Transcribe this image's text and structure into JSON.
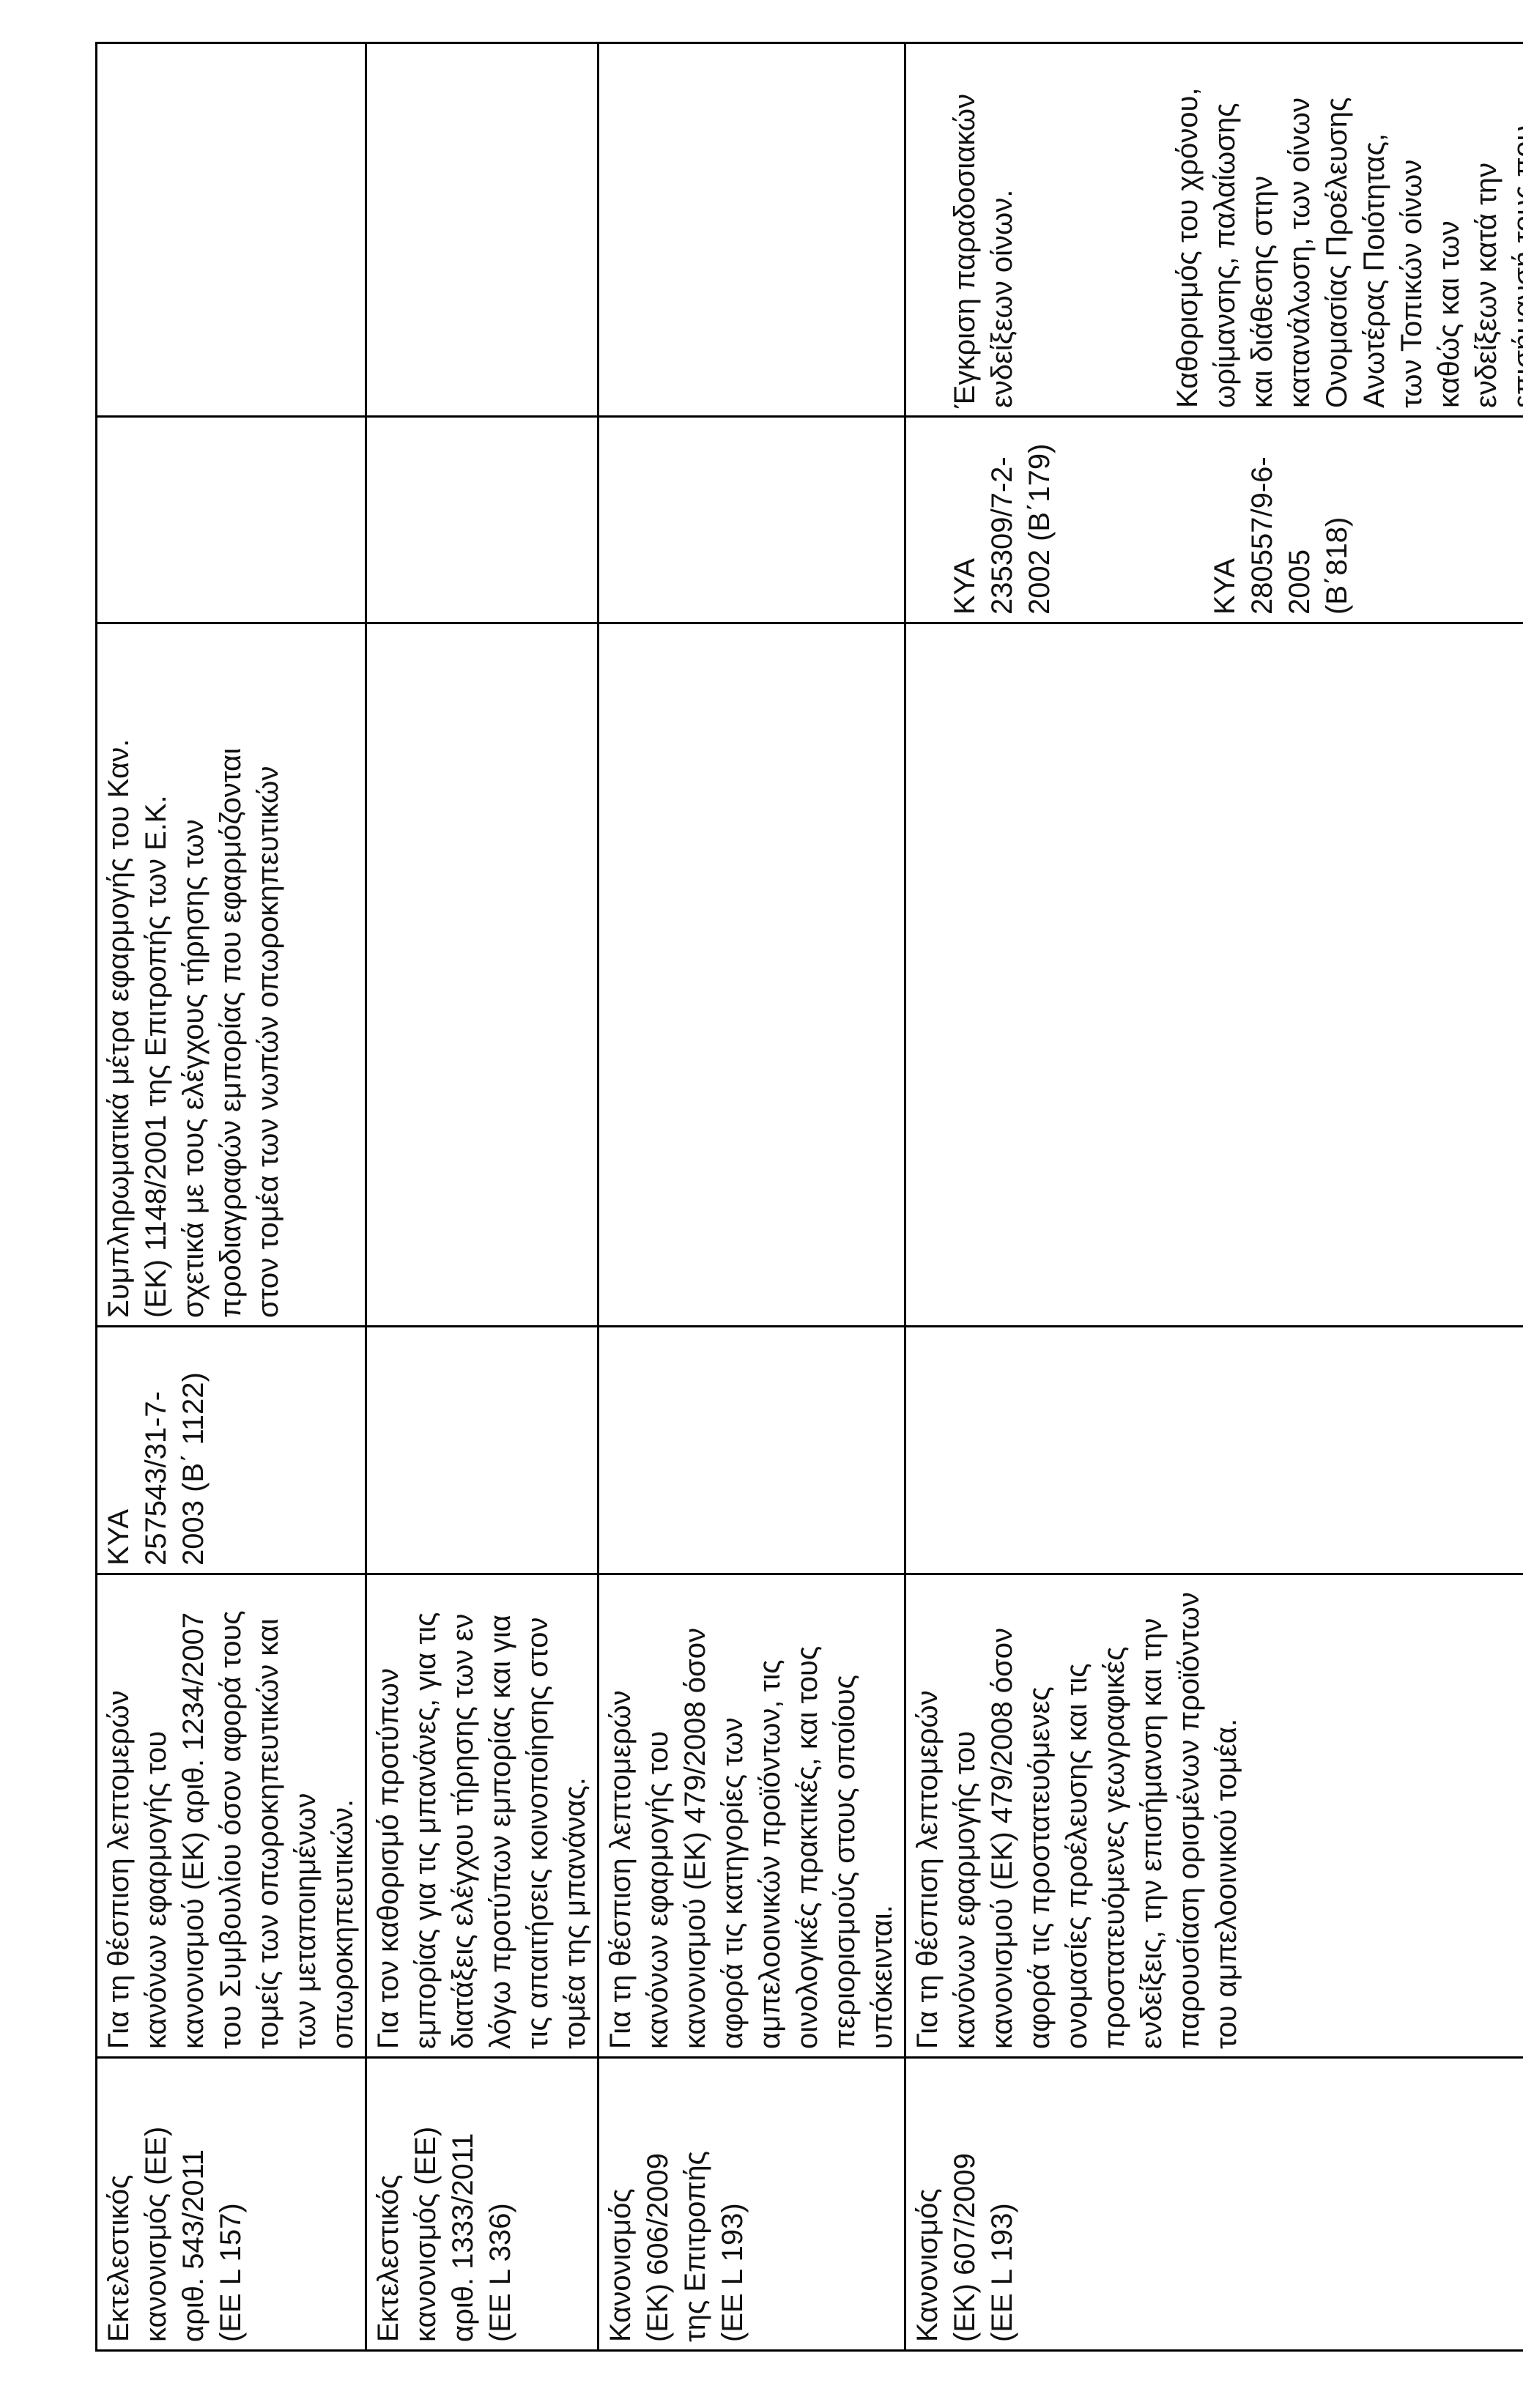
{
  "rows": [
    {
      "regulation": "Εκτελεστικός\nκανονισμός (ΕΕ)\nαριθ. 543/2011\n(ΕΕ L 157)",
      "description": "Για τη θέσπιση λεπτομερών\nκανόνων εφαρμογής του\nκανονισμού (ΕΚ) αριθ. 1234/2007\nτου Συμβουλίου όσον αφορά τους\nτομείς των οπωροκηπευτικών και\nτων μεταποιημένων\nοπωροκηπευτικών.",
      "kya": "ΚΥΑ\n257543/31-7-\n2003 (Β΄ 1122)",
      "kya_description": "Συμπληρωματικά μέτρα εφαρμογής του Καν.\n(ΕΚ) 1148/2001 της Επιτροπής των Ε.Κ.\nσχετικά με τους ελέγχους τήρησης των\nπροδιαγραφών εμπορίας που εφαρμόζονται\nστον τομέα των νωπών οπωροκηπευτικών",
      "kya2": "",
      "kya2_description": ""
    },
    {
      "regulation": "Εκτελεστικός\nκανονισμός (ΕΕ)\nαριθ. 1333/2011\n(ΕΕ L 336)",
      "description": "Για τον καθορισμό προτύπων\nεμπορίας για τις μπανάνες, για τις\nδιατάξεις ελέγχου τήρησης των εν\nλόγω προτύπων εμπορίας και για\nτις απαιτήσεις κοινοποίησης στον\nτομέα της μπανάνας.",
      "kya": "",
      "kya_description": "",
      "kya2": "",
      "kya2_description": ""
    },
    {
      "regulation": "Κανονισμός\n(ΕΚ) 606/2009\nτης Επιτροπής\n(ΕΕ L 193)",
      "description": "Για τη θέσπιση λεπτομερών\nκανόνων εφαρμογής του\nκανονισμού (ΕΚ) 479/2008 όσον\nαφορά τις κατηγορίες των\nαμπελοοινικών προϊόντων, τις\nοινολογικές πρακτικές, και τους\nπεριορισμούς στους οποίους\nυπόκεινται.",
      "kya": "",
      "kya_description": "",
      "kya2": "",
      "kya2_description": ""
    },
    {
      "regulation": "Κανονισμός\n(ΕΚ) 607/2009\n(ΕΕ L 193)",
      "description": "Για τη θέσπιση λεπτομερών\nκανόνων εφαρμογής του\nκανονισμού (ΕΚ) 479/2008 όσον\nαφορά τις προστατευόμενες\nονομασίες προέλευσης και τις\nπροστατευόμενες γεωγραφικές\nενδείξεις, την επισήμανση και την\nπαρουσίαση ορισμένων προϊόντων\nτου αμπελοοινικού τομέα.",
      "kya": "",
      "kya_description": "",
      "kya2": "ΚΥΑ\n235309/7-2-\n2002 (Β΄179)",
      "kya2_b": "ΚΥΑ\n280557/9-6-\n2005\n(Β΄818)",
      "kya2_description": "Έγκριση παραδοσιακών\nενδείξεων οίνων.",
      "kya2_description_b": "Καθορισμός του χρόνου,\nωρίμανσης, παλαίωσης\nκαι διάθεσης στην\nκατανάλωση, των οίνων\nΟνομασίας Προέλευσης\nΑνωτέρας Ποιότητας,\nτων Τοπικών οίνων\nκαθώς και των\nενδείξεων κατά την\nεπισήμανσή τους που\nαφορούν τον τρόπο\nπαραγωγής ή τις"
    }
  ]
}
